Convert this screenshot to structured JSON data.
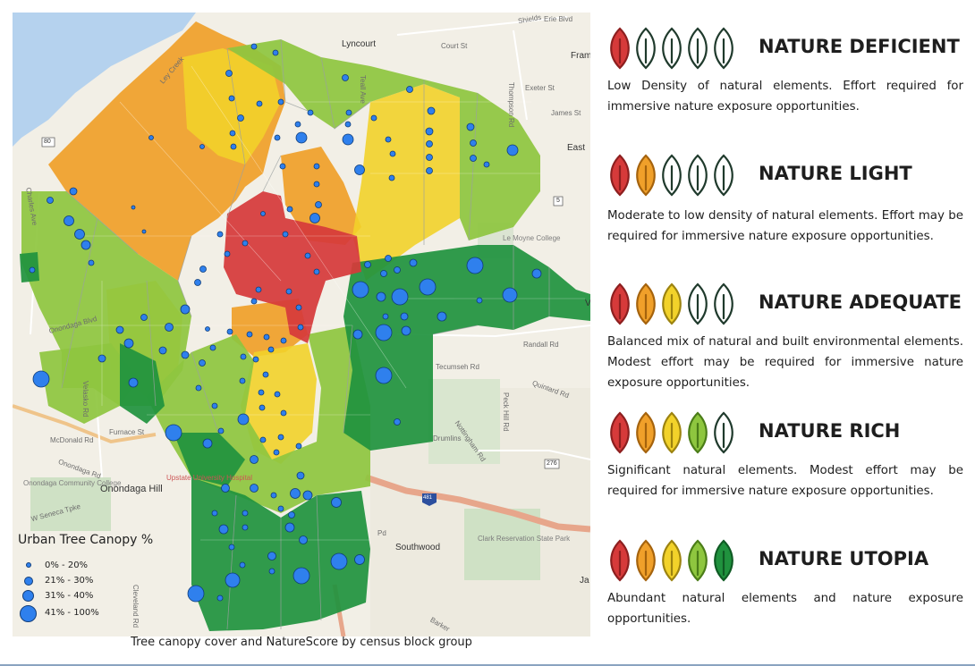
{
  "caption": "Tree canopy cover and NatureScore by census block group",
  "colors": {
    "water": "#b5d2ee",
    "deficient": "#d63a3a",
    "light": "#f0a02a",
    "adequate": "#f2d22a",
    "rich": "#8ec63f",
    "utopia": "#20923e",
    "leaf_empty_stroke": "#1f3a2c",
    "canopy_dot": "#2f80ed"
  },
  "map": {
    "places": {
      "lyncourt": "Lyncourt",
      "onondaga_hill": "Onondaga Hill",
      "southwood": "Southwood",
      "drumlins": "Drumlins",
      "fram": "Fram",
      "east": "East",
      "ja": "Ja",
      "v": "V"
    },
    "roads": {
      "court_st": "Court St",
      "thompson_rd": "Thompson Rd",
      "teall_ave": "Teall Ave",
      "exeter_st": "Exeter St",
      "james_st": "James St",
      "randall_rd": "Randall Rd",
      "tecumseh_rd": "Tecumseh Rd",
      "quintard_rd": "Quintard Rd",
      "peck_hill_rd": "Peck Hill Rd",
      "nottingham_rd": "Nottingham Rd",
      "velasko_rd": "Velasko Rd",
      "mcdonald_rd": "McDonald Rd",
      "furnace_st": "Furnace St",
      "onondaga_blvd": "Onondaga Blvd",
      "w_seneca_tpke": "W Seneca Tpke",
      "onondaga_rd": "Onondaga Rd",
      "cleveland_rd": "Cleveland Rd",
      "barker": "Barker",
      "lay_creek": "Ley Creek",
      "charles_ave": "Charles Ave",
      "shields": "Shields",
      "erie_blvd": "Erie Blvd",
      "rts_276": "276",
      "rts_5": "5",
      "rts_80": "80",
      "i_481": "481"
    },
    "institutions": {
      "lemoyne": "Le Moyne College",
      "upstate": "Upstate University Hospital",
      "occ": "Onondaga Community College",
      "clark": "Clark Reservation State Park",
      "pd": "Pd"
    },
    "legend": {
      "title": "Urban Tree Canopy %",
      "items": [
        "0% - 20%",
        "21% - 30%",
        "31% - 40%",
        "41% - 100%"
      ]
    }
  },
  "scores": [
    {
      "name": "NATURE DEFICIENT",
      "filled": 1,
      "description": "Low Density of natural elements. Effort required for immersive nature exposure opportunities."
    },
    {
      "name": "NATURE LIGHT",
      "filled": 2,
      "description": "Moderate to low density of natural elements. Effort may be required for immersive nature exposure opportunities."
    },
    {
      "name": "NATURE ADEQUATE",
      "filled": 3,
      "description": "Balanced mix of natural and built environmental elements. Modest effort may be required for immersive nature exposure opportunities."
    },
    {
      "name": "NATURE RICH",
      "filled": 4,
      "description": "Significant natural elements. Modest effort may be required for immersive nature exposure opportunities."
    },
    {
      "name": "NATURE UTOPIA",
      "filled": 5,
      "description": "Abundant natural elements and nature exposure opportunities."
    }
  ]
}
